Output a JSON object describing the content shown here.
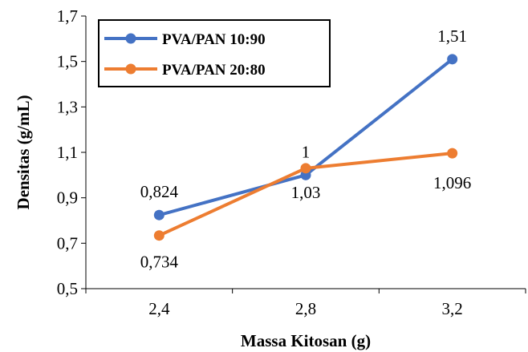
{
  "chart_data": {
    "type": "line",
    "title": "",
    "xlabel": "Massa Kitosan (g)",
    "ylabel": "Densitas (g/mL)",
    "categories": [
      "2,4",
      "2,8",
      "3,2"
    ],
    "x": [
      2.4,
      2.8,
      3.2
    ],
    "ylim": [
      0.5,
      1.7
    ],
    "yticks": [
      "0,5",
      "0,7",
      "0,9",
      "1,1",
      "1,3",
      "1,5",
      "1,7"
    ],
    "grid": false,
    "legend_position": "top-left",
    "series": [
      {
        "name": "PVA/PAN 10:90",
        "color": "#4472C4",
        "values": [
          0.824,
          1.0,
          1.51
        ],
        "labels": [
          "0,824",
          "1",
          "1,51"
        ]
      },
      {
        "name": "PVA/PAN 20:80",
        "color": "#ED7D31",
        "values": [
          0.734,
          1.03,
          1.096
        ],
        "labels": [
          "0,734",
          "1,03",
          "1,096"
        ]
      }
    ]
  }
}
